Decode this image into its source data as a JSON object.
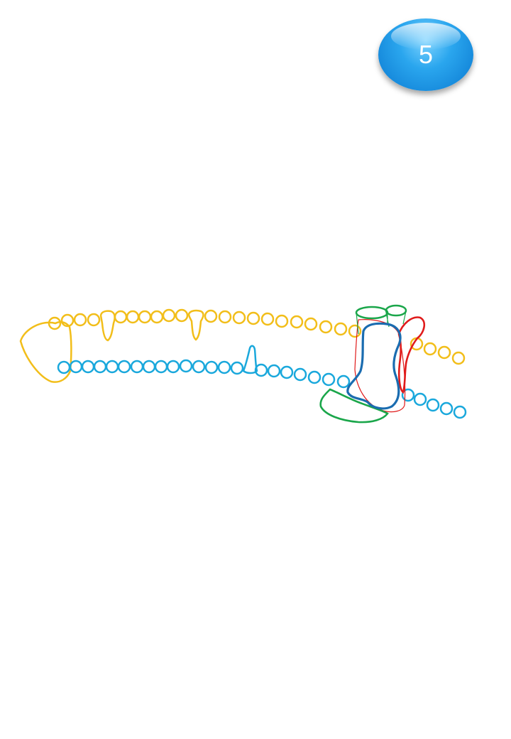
{
  "badge": {
    "number": "5"
  },
  "colors": {
    "template_strand": "#f2be1a",
    "coding_strand": "#1aa8dc",
    "green_subunit": "#1aa64a",
    "red_subunit": "#e01b1b",
    "blue_subunit": "#1a6cb0",
    "badge": "#1b8fe0"
  }
}
